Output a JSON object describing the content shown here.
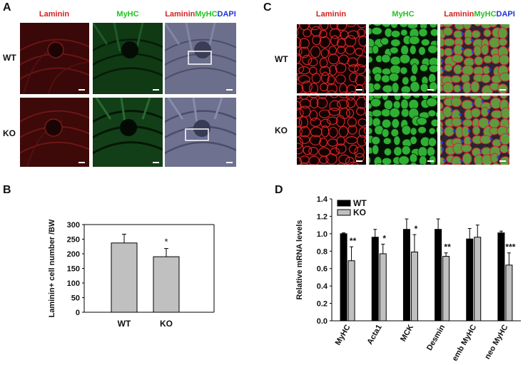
{
  "panels": {
    "a": {
      "letter": "A",
      "columns": [
        "Laminin",
        "MyHC",
        "LamininMyHCDAPI"
      ],
      "merge_parts": [
        "Laminin",
        "MyHC",
        "DAPI"
      ],
      "rows": [
        "WT",
        "KO"
      ]
    },
    "b": {
      "letter": "B"
    },
    "c": {
      "letter": "C",
      "columns": [
        "Laminin",
        "MyHC",
        "LamininMyHCDAPI"
      ],
      "merge_parts": [
        "Laminin",
        "MyHC",
        "DAPI"
      ],
      "rows": [
        "WT",
        "KO"
      ]
    },
    "d": {
      "letter": "D"
    }
  },
  "colors": {
    "laminin": "#d42020",
    "myhc": "#22c422",
    "dapi": "#2030d8",
    "bar_wt": "#000000",
    "bar_ko": "#c0c0c0"
  },
  "chart_data": [
    {
      "panel": "B",
      "type": "bar",
      "categories": [
        "WT",
        "KO"
      ],
      "values": [
        237,
        190
      ],
      "errors": [
        30,
        28
      ],
      "significance": [
        "",
        "*"
      ],
      "ylabel": "Laminin+ cell number /BW",
      "ylim": [
        0,
        300
      ],
      "yticks": [
        0,
        50,
        100,
        150,
        200,
        250,
        300
      ],
      "grid": false
    },
    {
      "panel": "D",
      "type": "bar",
      "categories": [
        "MyHC",
        "Acta1",
        "MCK",
        "Desmin",
        "emb MyHC",
        "neo MyHC"
      ],
      "series": [
        {
          "name": "WT",
          "values": [
            1.0,
            0.96,
            1.05,
            1.05,
            0.94,
            1.01
          ],
          "errors": [
            0.01,
            0.09,
            0.12,
            0.12,
            0.12,
            0.02
          ]
        },
        {
          "name": "KO",
          "values": [
            0.69,
            0.77,
            0.79,
            0.74,
            0.96,
            0.64
          ],
          "errors": [
            0.16,
            0.11,
            0.2,
            0.04,
            0.14,
            0.14
          ]
        }
      ],
      "significance": [
        "**",
        "*",
        "*",
        "**",
        "",
        "***"
      ],
      "ylabel": "Relative mRNA levels",
      "ylim": [
        0,
        1.4
      ],
      "yticks": [
        0.0,
        0.2,
        0.4,
        0.6,
        0.8,
        1.0,
        1.2,
        1.4
      ],
      "legend": "top-left",
      "grid": false
    }
  ]
}
